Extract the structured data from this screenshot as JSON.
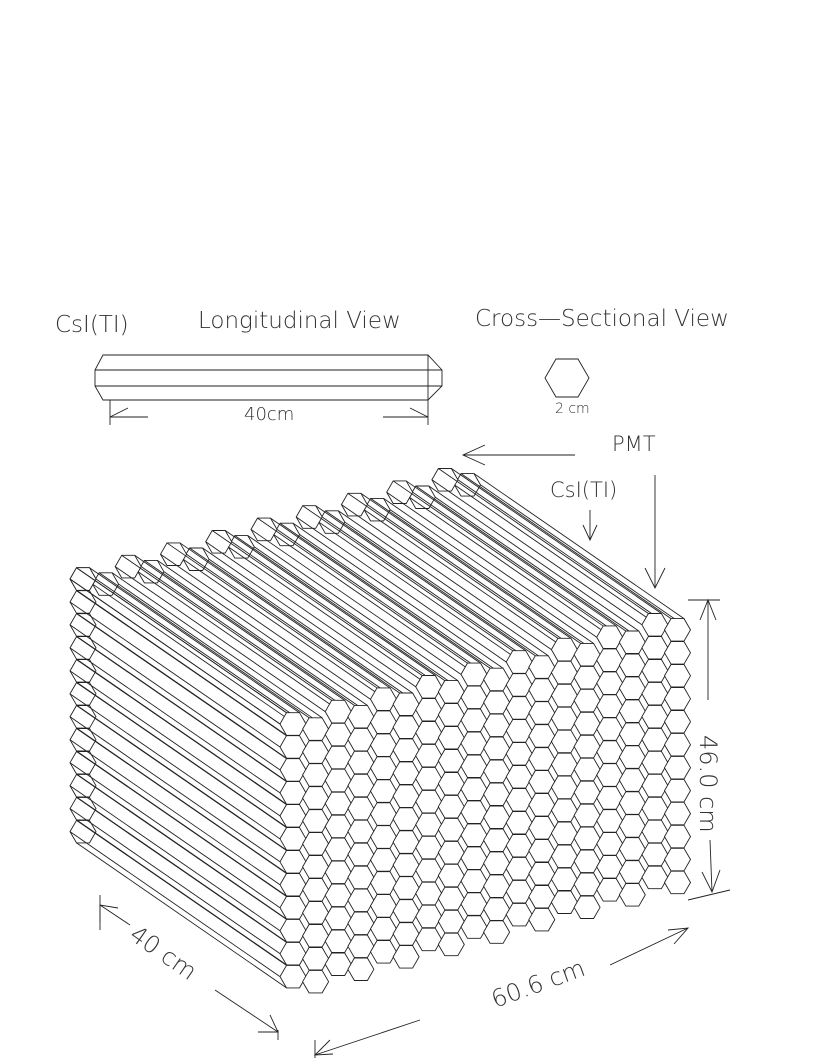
{
  "labels": {
    "crystal": "CsI(TI)",
    "longitudinal": "Longitudinal View",
    "cross": "Cross—Sectional View",
    "length": "40cm",
    "width": "2 cm",
    "pmt": "PMT",
    "crystal2": "CsI(TI)",
    "height": "46.0 cm",
    "depth": "40 cm",
    "breadth": "60.6 cm"
  }
}
